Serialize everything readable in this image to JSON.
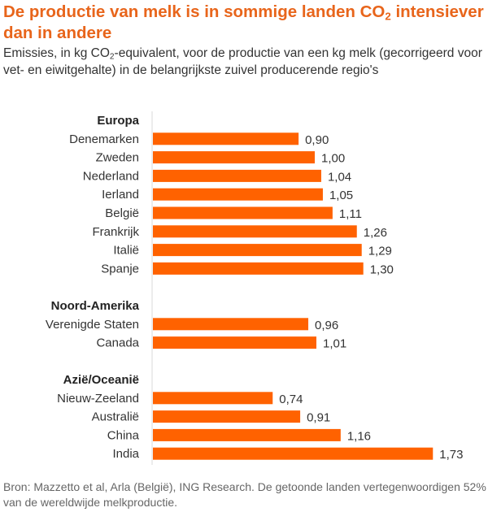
{
  "header": {
    "title_part1": "De productie van melk is in sommige landen CO",
    "title_sub": "2",
    "title_part2": " intensiever dan in andere",
    "subtitle_part1": "Emissies, in kg CO",
    "subtitle_sub": "2",
    "subtitle_part2": "-equivalent, voor de productie van een kg melk (gecorrigeerd voor vet- en eiwitgehalte) in de belangrijkste zuivel producerende regio's"
  },
  "footer": {
    "source": "Bron: Mazzetto et al, Arla (België), ING Research. De getoonde landen vertegenwoordigen 52% van de wereldwijde melkproductie."
  },
  "chart_data": {
    "type": "bar",
    "orientation": "horizontal",
    "title": "De productie van melk is in sommige landen CO2 intensiever dan in andere",
    "subtitle": "Emissies, in kg CO2-equivalent, voor de productie van een kg melk (gecorrigeerd voor vet- en eiwitgehalte) in de belangrijkste zuivel producerende regio's",
    "xlabel": "",
    "ylabel": "",
    "xlim": [
      0,
      2.0
    ],
    "grid": false,
    "bar_color": "#ff6200",
    "value_format": "comma-decimal-2",
    "groups": [
      {
        "name": "Europa",
        "categories": [
          "Denemarken",
          "Zweden",
          "Nederland",
          "Ierland",
          "België",
          "Frankrijk",
          "Italië",
          "Spanje"
        ],
        "values": [
          0.9,
          1.0,
          1.04,
          1.05,
          1.11,
          1.26,
          1.29,
          1.3
        ],
        "labels": [
          "0,90",
          "1,00",
          "1,04",
          "1,05",
          "1,11",
          "1,26",
          "1,29",
          "1,30"
        ]
      },
      {
        "name": "Noord-Amerika",
        "categories": [
          "Verenigde Staten",
          "Canada"
        ],
        "values": [
          0.96,
          1.01
        ],
        "labels": [
          "0,96",
          "1,01"
        ]
      },
      {
        "name": "Azië/Oceanië",
        "categories": [
          "Nieuw-Zeeland",
          "Australië",
          "China",
          "India"
        ],
        "values": [
          0.74,
          0.91,
          1.16,
          1.73
        ],
        "labels": [
          "0,74",
          "0,91",
          "1,16",
          "1,73"
        ]
      }
    ]
  }
}
